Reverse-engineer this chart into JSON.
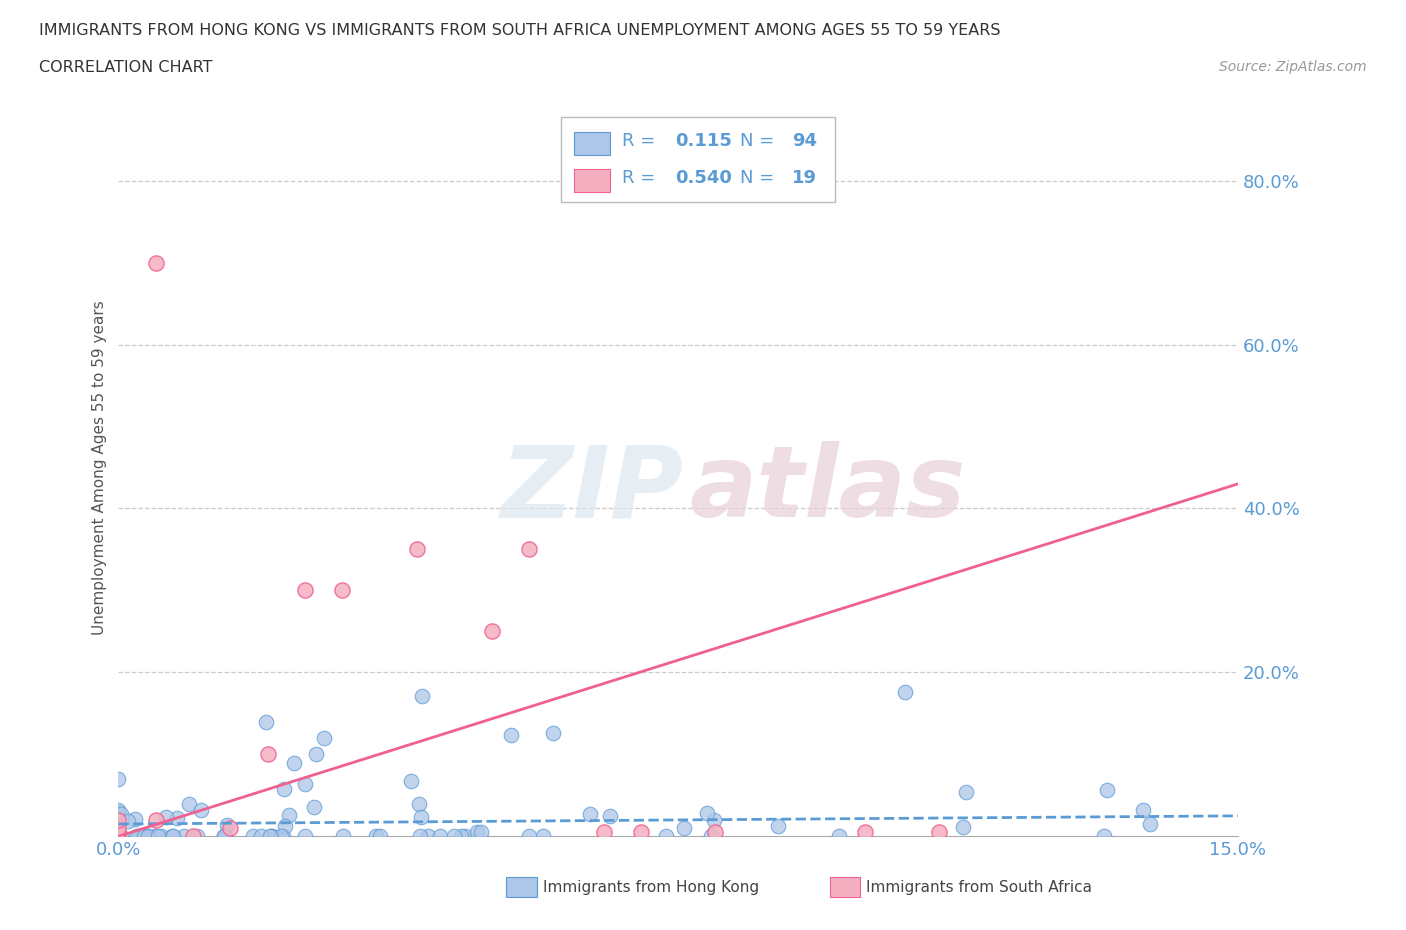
{
  "title_line1": "IMMIGRANTS FROM HONG KONG VS IMMIGRANTS FROM SOUTH AFRICA UNEMPLOYMENT AMONG AGES 55 TO 59 YEARS",
  "title_line2": "CORRELATION CHART",
  "source_text": "Source: ZipAtlas.com",
  "ylabel": "Unemployment Among Ages 55 to 59 years",
  "xlim": [
    0.0,
    0.15
  ],
  "ylim": [
    0.0,
    0.9
  ],
  "hk_color": "#aec6e8",
  "sa_color": "#f4b0c0",
  "hk_edge_color": "#5b9bd5",
  "sa_edge_color": "#f06090",
  "hk_line_color": "#5b9bd5",
  "sa_line_color": "#f06090",
  "hk_R": 0.115,
  "hk_N": 94,
  "sa_R": 0.54,
  "sa_N": 19,
  "watermark_zip": "ZIP",
  "watermark_atlas": "atlas",
  "background_color": "#ffffff",
  "grid_color": "#cccccc",
  "tick_color": "#5b9bd5",
  "sa_scatter_x": [
    0.0,
    0.0,
    0.0,
    0.0,
    0.005,
    0.005,
    0.01,
    0.015,
    0.02,
    0.025,
    0.03,
    0.04,
    0.05,
    0.055,
    0.065,
    0.07,
    0.08,
    0.1,
    0.11
  ],
  "sa_scatter_y": [
    0.0,
    0.005,
    0.01,
    0.02,
    0.02,
    0.7,
    0.0,
    0.01,
    0.1,
    0.3,
    0.3,
    0.35,
    0.25,
    0.35,
    0.005,
    0.005,
    0.005,
    0.005,
    0.005
  ]
}
